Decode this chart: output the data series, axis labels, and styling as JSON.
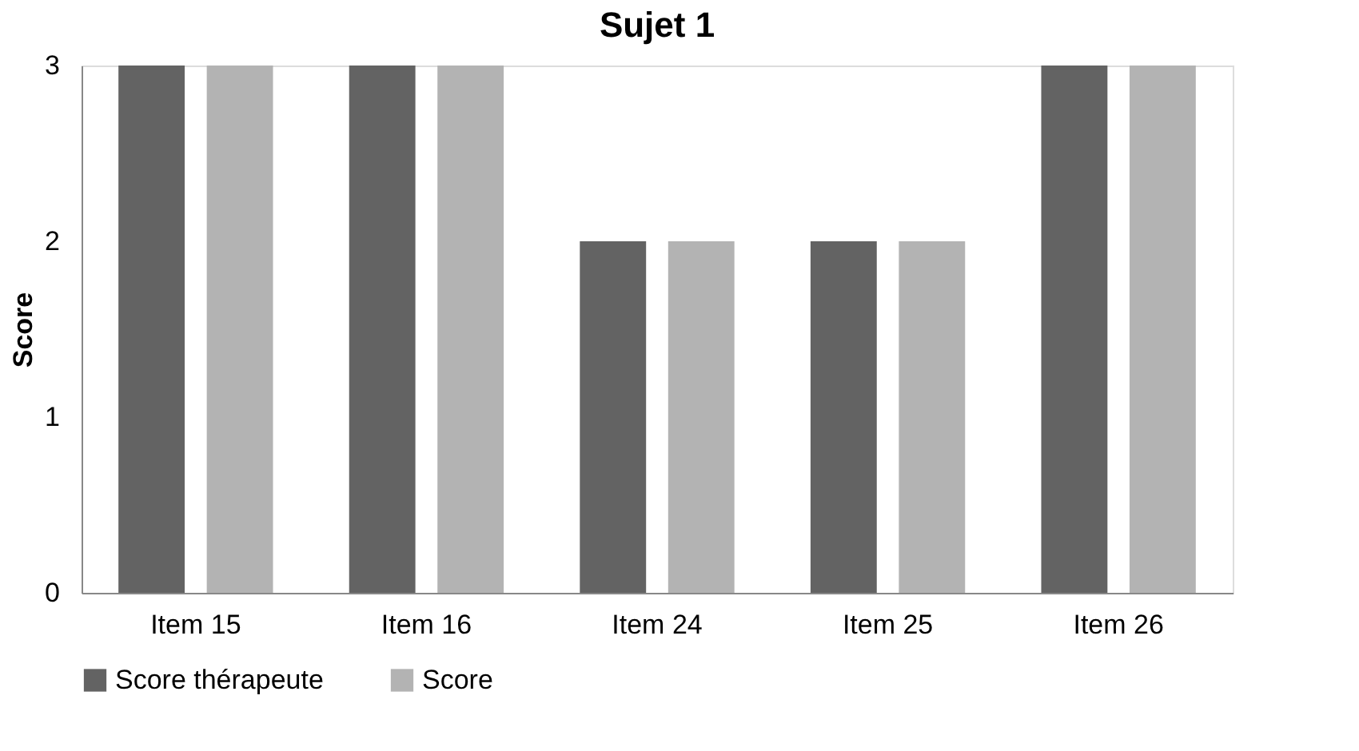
{
  "chart_data": {
    "type": "bar",
    "title": "Sujet 1",
    "ylabel": "Score",
    "categories": [
      "Item 15",
      "Item 16",
      "Item 24",
      "Item 25",
      "Item 26"
    ],
    "series": [
      {
        "name": "Score thérapeute",
        "color": "#636363",
        "values": [
          3,
          3,
          2,
          2,
          3
        ]
      },
      {
        "name": "Score",
        "color": "#b3b3b3",
        "values": [
          3,
          3,
          2,
          2,
          3
        ]
      }
    ],
    "ylim": [
      0,
      3
    ],
    "yticks": [
      0,
      1,
      2,
      3
    ],
    "grid": false,
    "legend": "bottom"
  }
}
